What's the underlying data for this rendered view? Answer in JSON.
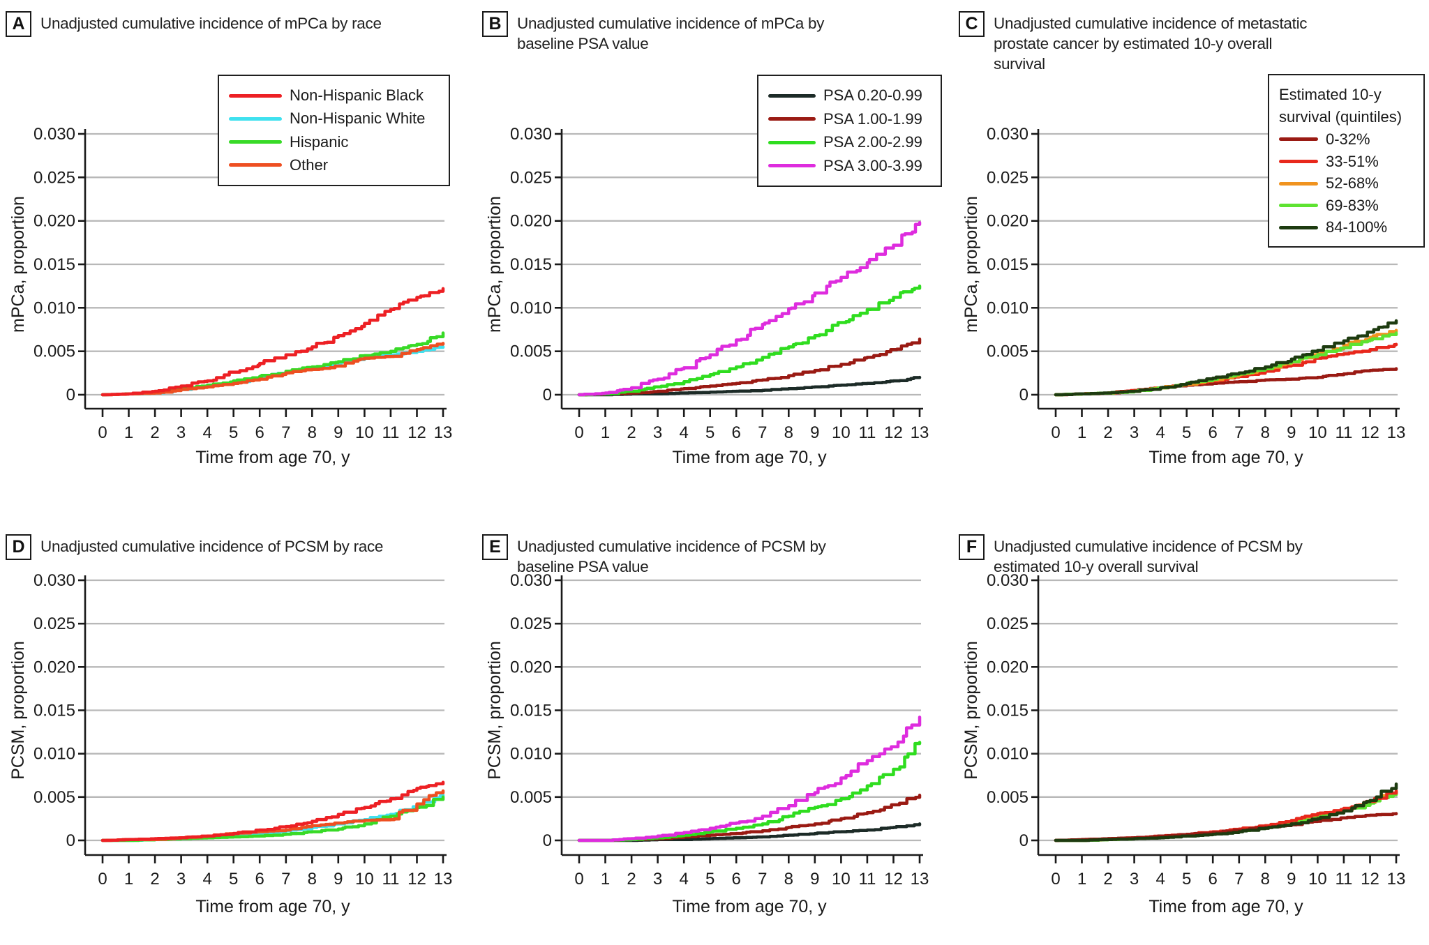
{
  "chart_data": [
    {
      "type": "line",
      "panel": "A",
      "title": "Unadjusted cumulative incidence of mPCa by race",
      "title_lines": [
        "Unadjusted cumulative incidence of mPCa by race"
      ],
      "xlabel": "Time from age 70, y",
      "ylabel": "mPCa, proportion",
      "xlim": [
        0,
        13
      ],
      "ylim": [
        0,
        0.03
      ],
      "x": [
        0,
        1,
        2,
        3,
        4,
        5,
        6,
        7,
        8,
        9,
        10,
        11,
        12,
        13
      ],
      "xtick_labels": [
        "0",
        "1",
        "2",
        "3",
        "4",
        "5",
        "6",
        "7",
        "8",
        "9",
        "10",
        "11",
        "12",
        "13"
      ],
      "yticks": [
        0,
        0.005,
        0.01,
        0.015,
        0.02,
        0.025,
        0.03
      ],
      "ytick_labels": [
        "0",
        "0.005",
        "0.010",
        "0.015",
        "0.020",
        "0.025",
        "0.030"
      ],
      "grid": "horizontal-gray",
      "legend": {
        "visible": true,
        "position": "upper-right",
        "title_lines": [],
        "entries": [
          {
            "label": "Non-Hispanic Black",
            "color": "#ed2024"
          },
          {
            "label": "Non-Hispanic White",
            "color": "#3fe1ef"
          },
          {
            "label": "Hispanic",
            "color": "#38da27"
          },
          {
            "label": "Other",
            "color": "#ee4f21"
          }
        ]
      },
      "series": [
        {
          "name": "Non-Hispanic White",
          "color": "#3fe1ef",
          "values": [
            0,
            0.0001,
            0.0002,
            0.0006,
            0.001,
            0.0014,
            0.002,
            0.0026,
            0.003,
            0.0036,
            0.0042,
            0.0046,
            0.005,
            0.0055
          ]
        },
        {
          "name": "Hispanic",
          "color": "#38da27",
          "values": [
            0,
            0.0001,
            0.0003,
            0.0007,
            0.0011,
            0.0016,
            0.0021,
            0.0027,
            0.0032,
            0.0038,
            0.0045,
            0.005,
            0.0058,
            0.0071
          ]
        },
        {
          "name": "Other",
          "color": "#ee4f21",
          "values": [
            0,
            0.0001,
            0.0002,
            0.0006,
            0.0009,
            0.0013,
            0.0018,
            0.0025,
            0.0029,
            0.0033,
            0.0042,
            0.0044,
            0.0052,
            0.0059
          ]
        },
        {
          "name": "Non-Hispanic Black",
          "color": "#ed2024",
          "values": [
            0,
            0.0001,
            0.0004,
            0.001,
            0.0016,
            0.0026,
            0.0036,
            0.0046,
            0.0055,
            0.0068,
            0.0082,
            0.0098,
            0.0112,
            0.0122
          ]
        }
      ]
    },
    {
      "type": "line",
      "panel": "B",
      "title": "Unadjusted cumulative incidence of mPCa by baseline PSA value",
      "title_lines": [
        "Unadjusted cumulative incidence of mPCa by",
        "baseline PSA value"
      ],
      "xlabel": "Time from age 70, y",
      "ylabel": "mPCa, proportion",
      "xlim": [
        0,
        13
      ],
      "ylim": [
        0,
        0.03
      ],
      "x": [
        0,
        1,
        2,
        3,
        4,
        5,
        6,
        7,
        8,
        9,
        10,
        11,
        12,
        13
      ],
      "xtick_labels": [
        "0",
        "1",
        "2",
        "3",
        "4",
        "5",
        "6",
        "7",
        "8",
        "9",
        "10",
        "11",
        "12",
        "13"
      ],
      "yticks": [
        0,
        0.005,
        0.01,
        0.015,
        0.02,
        0.025,
        0.03
      ],
      "ytick_labels": [
        "0",
        "0.005",
        "0.010",
        "0.015",
        "0.020",
        "0.025",
        "0.030"
      ],
      "grid": "horizontal-gray",
      "legend": {
        "visible": true,
        "position": "upper-right",
        "title_lines": [],
        "entries": [
          {
            "label": "PSA 0.20-0.99",
            "color": "#1c2b27"
          },
          {
            "label": "PSA 1.00-1.99",
            "color": "#9a1a13"
          },
          {
            "label": "PSA 2.00-2.99",
            "color": "#2fdd1f"
          },
          {
            "label": "PSA 3.00-3.99",
            "color": "#de2cde"
          }
        ]
      },
      "series": [
        {
          "name": "PSA 0.20-0.99",
          "color": "#1c2b27",
          "values": [
            0,
            0,
            0.0001,
            0.0001,
            0.0002,
            0.0003,
            0.0004,
            0.0005,
            0.0007,
            0.0009,
            0.0011,
            0.0013,
            0.0016,
            0.002
          ]
        },
        {
          "name": "PSA 1.00-1.99",
          "color": "#9a1a13",
          "values": [
            0,
            0.0001,
            0.0002,
            0.0004,
            0.0007,
            0.001,
            0.0013,
            0.0017,
            0.0022,
            0.0028,
            0.0035,
            0.0043,
            0.0052,
            0.0064
          ]
        },
        {
          "name": "PSA 2.00-2.99",
          "color": "#2fdd1f",
          "values": [
            0,
            0.0001,
            0.0004,
            0.0009,
            0.0015,
            0.0023,
            0.0032,
            0.0043,
            0.0055,
            0.0068,
            0.0083,
            0.0098,
            0.0112,
            0.0125
          ]
        },
        {
          "name": "PSA 3.00-3.99",
          "color": "#de2cde",
          "values": [
            0,
            0.0002,
            0.0008,
            0.0018,
            0.0031,
            0.0046,
            0.0063,
            0.0081,
            0.0099,
            0.0117,
            0.0135,
            0.0152,
            0.0172,
            0.0198
          ]
        }
      ]
    },
    {
      "type": "line",
      "panel": "C",
      "title": "Unadjusted cumulative incidence of metastatic prostate cancer by estimated 10-y overall survival",
      "title_lines": [
        "Unadjusted cumulative incidence of metastatic",
        "prostate cancer by estimated 10-y overall",
        "survival"
      ],
      "xlabel": "Time from age 70, y",
      "ylabel": "mPCa, proportion",
      "xlim": [
        0,
        13
      ],
      "ylim": [
        0,
        0.03
      ],
      "x": [
        0,
        1,
        2,
        3,
        4,
        5,
        6,
        7,
        8,
        9,
        10,
        11,
        12,
        13
      ],
      "xtick_labels": [
        "0",
        "1",
        "2",
        "3",
        "4",
        "5",
        "6",
        "7",
        "8",
        "9",
        "10",
        "11",
        "12",
        "13"
      ],
      "yticks": [
        0,
        0.005,
        0.01,
        0.015,
        0.02,
        0.025,
        0.03
      ],
      "ytick_labels": [
        "0",
        "0.005",
        "0.010",
        "0.015",
        "0.020",
        "0.025",
        "0.030"
      ],
      "grid": "horizontal-gray",
      "legend": {
        "visible": true,
        "position": "upper-right",
        "title_lines": [
          "Estimated 10-y",
          "survival (quintiles)"
        ],
        "entries": [
          {
            "label": "0-32%",
            "color": "#9a1a13"
          },
          {
            "label": "33-51%",
            "color": "#e8281c"
          },
          {
            "label": "52-68%",
            "color": "#f0931f"
          },
          {
            "label": "69-83%",
            "color": "#5ee331"
          },
          {
            "label": "84-100%",
            "color": "#1d3b10"
          }
        ]
      },
      "series": [
        {
          "name": "0-32%",
          "color": "#9a1a13",
          "values": [
            0,
            0.0001,
            0.0002,
            0.0005,
            0.0008,
            0.0011,
            0.0013,
            0.0015,
            0.0017,
            0.0018,
            0.002,
            0.0024,
            0.0028,
            0.003
          ]
        },
        {
          "name": "33-51%",
          "color": "#e8281c",
          "values": [
            0,
            0.0001,
            0.0002,
            0.0005,
            0.0008,
            0.0012,
            0.0016,
            0.0021,
            0.0027,
            0.0034,
            0.0042,
            0.0047,
            0.0052,
            0.0058
          ]
        },
        {
          "name": "52-68%",
          "color": "#f0931f",
          "values": [
            0,
            0.0001,
            0.0002,
            0.0004,
            0.0008,
            0.0012,
            0.0017,
            0.0023,
            0.003,
            0.0038,
            0.0047,
            0.0057,
            0.0066,
            0.0074
          ]
        },
        {
          "name": "69-83%",
          "color": "#5ee331",
          "values": [
            0,
            0.0001,
            0.0002,
            0.0004,
            0.0008,
            0.0013,
            0.0018,
            0.0024,
            0.003,
            0.0038,
            0.0046,
            0.0054,
            0.0063,
            0.0071
          ]
        },
        {
          "name": "84-100%",
          "color": "#1d3b10",
          "values": [
            0,
            0.0001,
            0.0002,
            0.0004,
            0.0008,
            0.0013,
            0.0019,
            0.0025,
            0.0032,
            0.0041,
            0.0051,
            0.0062,
            0.0072,
            0.0085
          ]
        }
      ]
    },
    {
      "type": "line",
      "panel": "D",
      "title": "Unadjusted cumulative incidence of PCSM by race",
      "title_lines": [
        "Unadjusted cumulative incidence of PCSM by race"
      ],
      "xlabel": "Time from age 70, y",
      "ylabel": "PCSM, proportion",
      "xlim": [
        0,
        13
      ],
      "ylim": [
        0,
        0.03
      ],
      "x": [
        0,
        1,
        2,
        3,
        4,
        5,
        6,
        7,
        8,
        9,
        10,
        11,
        12,
        13
      ],
      "xtick_labels": [
        "0",
        "1",
        "2",
        "3",
        "4",
        "5",
        "6",
        "7",
        "8",
        "9",
        "10",
        "11",
        "12",
        "13"
      ],
      "yticks": [
        0,
        0.005,
        0.01,
        0.015,
        0.02,
        0.025,
        0.03
      ],
      "ytick_labels": [
        "0",
        "0.005",
        "0.010",
        "0.015",
        "0.020",
        "0.025",
        "0.030"
      ],
      "grid": "horizontal-gray",
      "legend": {
        "visible": false,
        "position": "",
        "title_lines": [],
        "entries": []
      },
      "series": [
        {
          "name": "Non-Hispanic White",
          "color": "#3fe1ef",
          "values": [
            0,
            0,
            0.0001,
            0.0002,
            0.0004,
            0.0006,
            0.0008,
            0.0011,
            0.0015,
            0.0019,
            0.0024,
            0.003,
            0.0039,
            0.0052
          ]
        },
        {
          "name": "Hispanic",
          "color": "#38da27",
          "values": [
            0,
            0,
            0.0001,
            0.0002,
            0.0003,
            0.0004,
            0.0005,
            0.0007,
            0.001,
            0.0013,
            0.0019,
            0.0028,
            0.0038,
            0.005
          ]
        },
        {
          "name": "Other",
          "color": "#ee4f21",
          "values": [
            0,
            0.0001,
            0.0001,
            0.0003,
            0.0005,
            0.0008,
            0.001,
            0.0012,
            0.0017,
            0.002,
            0.0023,
            0.0024,
            0.0042,
            0.0057
          ]
        },
        {
          "name": "Non-Hispanic Black",
          "color": "#ed2024",
          "values": [
            0,
            0.0001,
            0.0002,
            0.0003,
            0.0005,
            0.0008,
            0.0012,
            0.0016,
            0.0022,
            0.003,
            0.0038,
            0.0048,
            0.006,
            0.0067
          ]
        }
      ]
    },
    {
      "type": "line",
      "panel": "E",
      "title": "Unadjusted cumulative incidence of PCSM by baseline PSA value",
      "title_lines": [
        "Unadjusted cumulative incidence of PCSM by",
        "baseline PSA value"
      ],
      "xlabel": "Time from age 70, y",
      "ylabel": "PCSM, proportion",
      "xlim": [
        0,
        13
      ],
      "ylim": [
        0,
        0.03
      ],
      "x": [
        0,
        1,
        2,
        3,
        4,
        5,
        6,
        7,
        8,
        9,
        10,
        11,
        12,
        13
      ],
      "xtick_labels": [
        "0",
        "1",
        "2",
        "3",
        "4",
        "5",
        "6",
        "7",
        "8",
        "9",
        "10",
        "11",
        "12",
        "13"
      ],
      "yticks": [
        0,
        0.005,
        0.01,
        0.015,
        0.02,
        0.025,
        0.03
      ],
      "ytick_labels": [
        "0",
        "0.005",
        "0.010",
        "0.015",
        "0.020",
        "0.025",
        "0.030"
      ],
      "grid": "horizontal-gray",
      "legend": {
        "visible": false,
        "position": "",
        "title_lines": [],
        "entries": []
      },
      "series": [
        {
          "name": "PSA 0.20-0.99",
          "color": "#1c2b27",
          "values": [
            0,
            0,
            0,
            0.0001,
            0.0001,
            0.0002,
            0.0003,
            0.0004,
            0.0006,
            0.0008,
            0.001,
            0.0012,
            0.0015,
            0.0019
          ]
        },
        {
          "name": "PSA 1.00-1.99",
          "color": "#9a1a13",
          "values": [
            0,
            0,
            0.0001,
            0.0002,
            0.0004,
            0.0006,
            0.0008,
            0.0011,
            0.0015,
            0.0019,
            0.0025,
            0.0032,
            0.0041,
            0.0052
          ]
        },
        {
          "name": "PSA 2.00-2.99",
          "color": "#2fdd1f",
          "values": [
            0,
            0,
            0.0001,
            0.0003,
            0.0006,
            0.001,
            0.0014,
            0.0019,
            0.0028,
            0.0038,
            0.0048,
            0.0063,
            0.0082,
            0.0113
          ]
        },
        {
          "name": "PSA 3.00-3.99",
          "color": "#de2cde",
          "values": [
            0,
            0,
            0.0002,
            0.0005,
            0.0009,
            0.0014,
            0.002,
            0.0028,
            0.004,
            0.0055,
            0.0072,
            0.0092,
            0.0108,
            0.0142
          ]
        }
      ]
    },
    {
      "type": "line",
      "panel": "F",
      "title": "Unadjusted cumulative incidence of PCSM by estimated 10-y overall survival",
      "title_lines": [
        "Unadjusted cumulative incidence of PCSM by",
        "estimated 10-y overall survival"
      ],
      "xlabel": "Time from age 70, y",
      "ylabel": "PCSM, proportion",
      "xlim": [
        0,
        13
      ],
      "ylim": [
        0,
        0.03
      ],
      "x": [
        0,
        1,
        2,
        3,
        4,
        5,
        6,
        7,
        8,
        9,
        10,
        11,
        12,
        13
      ],
      "xtick_labels": [
        "0",
        "1",
        "2",
        "3",
        "4",
        "5",
        "6",
        "7",
        "8",
        "9",
        "10",
        "11",
        "12",
        "13"
      ],
      "yticks": [
        0,
        0.005,
        0.01,
        0.015,
        0.02,
        0.025,
        0.03
      ],
      "ytick_labels": [
        "0",
        "0.005",
        "0.010",
        "0.015",
        "0.020",
        "0.025",
        "0.030"
      ],
      "grid": "horizontal-gray",
      "legend": {
        "visible": false,
        "position": "",
        "title_lines": [],
        "entries": []
      },
      "series": [
        {
          "name": "52-68%",
          "color": "#f0931f",
          "values": [
            0,
            0,
            0.0001,
            0.0003,
            0.0004,
            0.0006,
            0.0009,
            0.0012,
            0.0016,
            0.0021,
            0.0028,
            0.0035,
            0.0044,
            0.0057
          ]
        },
        {
          "name": "69-83%",
          "color": "#5ee331",
          "values": [
            0,
            0,
            0.0001,
            0.0002,
            0.0004,
            0.0006,
            0.0008,
            0.0011,
            0.0015,
            0.002,
            0.0027,
            0.0034,
            0.0043,
            0.0055
          ]
        },
        {
          "name": "33-51%",
          "color": "#e8281c",
          "values": [
            0,
            0.0001,
            0.0002,
            0.0003,
            0.0005,
            0.0007,
            0.001,
            0.0013,
            0.0017,
            0.0023,
            0.0031,
            0.0037,
            0.0045,
            0.0057
          ]
        },
        {
          "name": "0-32%",
          "color": "#9a1a13",
          "values": [
            0,
            0.0001,
            0.0002,
            0.0003,
            0.0005,
            0.0007,
            0.0009,
            0.0012,
            0.0015,
            0.0018,
            0.0022,
            0.0026,
            0.0029,
            0.0031
          ]
        },
        {
          "name": "84-100%",
          "color": "#1d3b10",
          "values": [
            0,
            0,
            0.0001,
            0.0002,
            0.0003,
            0.0005,
            0.0007,
            0.001,
            0.0014,
            0.0019,
            0.0025,
            0.0034,
            0.0046,
            0.0065
          ]
        }
      ]
    }
  ]
}
